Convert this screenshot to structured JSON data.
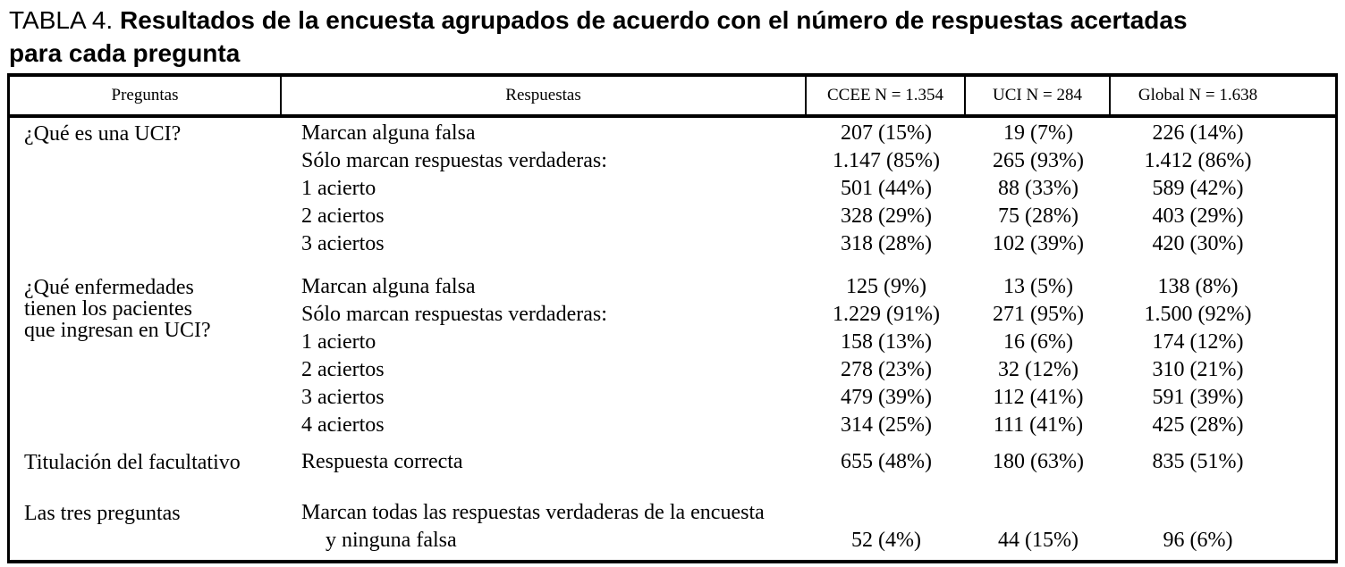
{
  "title": {
    "prefix": "TABLA 4.",
    "line1": "Resultados de la encuesta agrupados de acuerdo con el número de respuestas acertadas",
    "line2": "para cada pregunta"
  },
  "table": {
    "headers": [
      "Preguntas",
      "Respuestas",
      "CCEE N = 1.354",
      "UCI N = 284",
      "Global N = 1.638"
    ],
    "blocks": [
      {
        "question_lines": [
          "¿Qué es una UCI?"
        ],
        "rows": [
          {
            "label": "Marcan alguna falsa",
            "ccee": "207 (15%)",
            "uci": "19 (7%)",
            "global": "226 (14%)"
          },
          {
            "label": "Sólo marcan respuestas verdaderas:",
            "ccee": "1.147 (85%)",
            "uci": "265 (93%)",
            "global": "1.412 (86%)"
          },
          {
            "label": "1 acierto",
            "ccee": "501 (44%)",
            "uci": "88 (33%)",
            "global": "589 (42%)"
          },
          {
            "label": "2 aciertos",
            "ccee": "328 (29%)",
            "uci": "75 (28%)",
            "global": "403 (29%)"
          },
          {
            "label": "3 aciertos",
            "ccee": "318 (28%)",
            "uci": "102 (39%)",
            "global": "420 (30%)"
          }
        ]
      },
      {
        "question_lines": [
          "¿Qué enfermedades",
          "tienen los pacientes",
          "que ingresan en UCI?"
        ],
        "rows": [
          {
            "label": "Marcan alguna falsa",
            "ccee": "125 (9%)",
            "uci": "13 (5%)",
            "global": "138 (8%)"
          },
          {
            "label": "Sólo marcan respuestas verdaderas:",
            "ccee": "1.229 (91%)",
            "uci": "271 (95%)",
            "global": "1.500 (92%)"
          },
          {
            "label": "1 acierto",
            "ccee": "158 (13%)",
            "uci": "16 (6%)",
            "global": "174 (12%)"
          },
          {
            "label": "2 aciertos",
            "ccee": "278 (23%)",
            "uci": "32 (12%)",
            "global": "310 (21%)"
          },
          {
            "label": "3 aciertos",
            "ccee": "479 (39%)",
            "uci": "112 (41%)",
            "global": "591 (39%)"
          },
          {
            "label": "4 aciertos",
            "ccee": "314 (25%)",
            "uci": "111 (41%)",
            "global": "425 (28%)"
          }
        ]
      },
      {
        "question_lines": [
          "Titulación del facultativo"
        ],
        "rows": [
          {
            "label": "Respuesta correcta",
            "ccee": "655 (48%)",
            "uci": "180 (63%)",
            "global": "835 (51%)"
          }
        ]
      },
      {
        "question_lines": [
          "Las tres preguntas"
        ],
        "rows": [
          {
            "label": "Marcan todas las respuestas verdaderas de la encuesta",
            "ccee": "",
            "uci": "",
            "global": ""
          },
          {
            "label": "y ninguna falsa",
            "indent": true,
            "ccee": "52 (4%)",
            "uci": "44 (15%)",
            "global": "96 (6%)"
          }
        ]
      }
    ]
  },
  "colors": {
    "text": "#000000",
    "background": "#ffffff",
    "border": "#000000"
  }
}
